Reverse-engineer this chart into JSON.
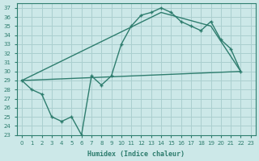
{
  "xlabel": "Humidex (Indice chaleur)",
  "bg_color": "#cce8e8",
  "grid_color": "#aacfcf",
  "line_color": "#2e7d6e",
  "xlim": [
    -0.5,
    23.5
  ],
  "ylim": [
    23,
    37.5
  ],
  "xticks": [
    0,
    1,
    2,
    3,
    4,
    5,
    6,
    7,
    8,
    9,
    10,
    11,
    12,
    13,
    14,
    15,
    16,
    17,
    18,
    19,
    20,
    21,
    22,
    23
  ],
  "yticks": [
    23,
    24,
    25,
    26,
    27,
    28,
    29,
    30,
    31,
    32,
    33,
    34,
    35,
    36,
    37
  ],
  "line1_x": [
    0,
    1,
    2,
    3,
    4,
    5,
    6,
    7,
    8,
    9,
    10,
    11,
    12,
    13,
    14,
    15,
    16,
    17,
    18,
    19,
    20,
    21,
    22
  ],
  "line1_y": [
    29.0,
    28.0,
    27.5,
    25.0,
    24.5,
    25.0,
    23.0,
    29.5,
    28.5,
    29.5,
    33.0,
    35.0,
    36.2,
    36.5,
    37.0,
    36.5,
    35.5,
    35.0,
    34.5,
    35.5,
    33.5,
    32.5,
    30.0
  ],
  "line2_x": [
    0,
    14,
    19,
    22
  ],
  "line2_y": [
    29.0,
    36.5,
    35.0,
    30.0
  ],
  "line3_x": [
    0,
    22
  ],
  "line3_y": [
    29.0,
    30.0
  ]
}
